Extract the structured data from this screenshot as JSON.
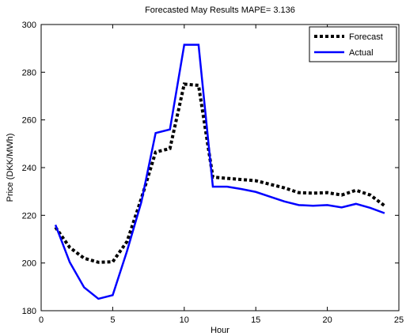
{
  "chart_data": {
    "type": "line",
    "title": "Forecasted May Results MAPE= 3.136",
    "xlabel": "Hour",
    "ylabel": "Price (DKK/MWh)",
    "xlim": [
      0,
      25
    ],
    "ylim": [
      180,
      300
    ],
    "x_ticks": [
      0,
      5,
      10,
      15,
      20,
      25
    ],
    "y_ticks": [
      180,
      200,
      220,
      240,
      260,
      280,
      300
    ],
    "grid": false,
    "legend_position": "top-right",
    "x": [
      1,
      2,
      3,
      4,
      5,
      6,
      7,
      8,
      9,
      10,
      11,
      12,
      13,
      14,
      15,
      16,
      17,
      18,
      19,
      20,
      21,
      22,
      23,
      24
    ],
    "series": [
      {
        "name": "Forecast",
        "style": "dotted",
        "color": "#000000",
        "values": [
          215,
          206.5,
          202,
          200.3,
          200.5,
          209,
          227,
          246.5,
          248,
          275,
          274.5,
          236,
          235.5,
          235,
          234.5,
          233,
          231.5,
          229.5,
          229.3,
          229.5,
          228.5,
          230.5,
          228.5,
          224
        ]
      },
      {
        "name": "Actual",
        "style": "solid",
        "color": "#0000ff",
        "values": [
          216,
          200.3,
          189.8,
          185,
          186.5,
          205,
          225.5,
          254.5,
          256,
          291.5,
          291.5,
          232,
          232,
          231,
          229.8,
          227.8,
          225.8,
          224.3,
          224,
          224.3,
          223.3,
          224.8,
          223.1,
          220.9
        ]
      }
    ]
  }
}
